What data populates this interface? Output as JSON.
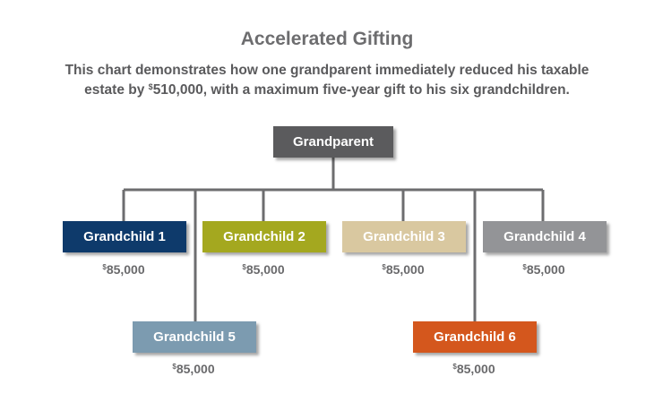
{
  "title": "Accelerated Gifting",
  "subtitle": {
    "line1": "This chart demonstrates how one grandparent immediately reduced his taxable",
    "line2_pre": "estate by ",
    "line2_currency": "$",
    "line2_amount": "510,000",
    "line2_post": ", with a maximum five-year gift to his six grandchildren."
  },
  "root": {
    "label": "Grandparent",
    "color": "#5b5b5d"
  },
  "connector_color": "#6d6d6f",
  "nodes": [
    {
      "label": "Grandchild 1",
      "color": "#0e3a6b",
      "currency": "$",
      "amount": "85,000"
    },
    {
      "label": "Grandchild 2",
      "color": "#a4a81f",
      "currency": "$",
      "amount": "85,000"
    },
    {
      "label": "Grandchild 3",
      "color": "#d9c8a0",
      "currency": "$",
      "amount": "85,000"
    },
    {
      "label": "Grandchild 4",
      "color": "#939497",
      "currency": "$",
      "amount": "85,000"
    },
    {
      "label": "Grandchild 5",
      "color": "#7c9bb0",
      "currency": "$",
      "amount": "85,000"
    },
    {
      "label": "Grandchild 6",
      "color": "#d4571d",
      "currency": "$",
      "amount": "85,000"
    }
  ]
}
